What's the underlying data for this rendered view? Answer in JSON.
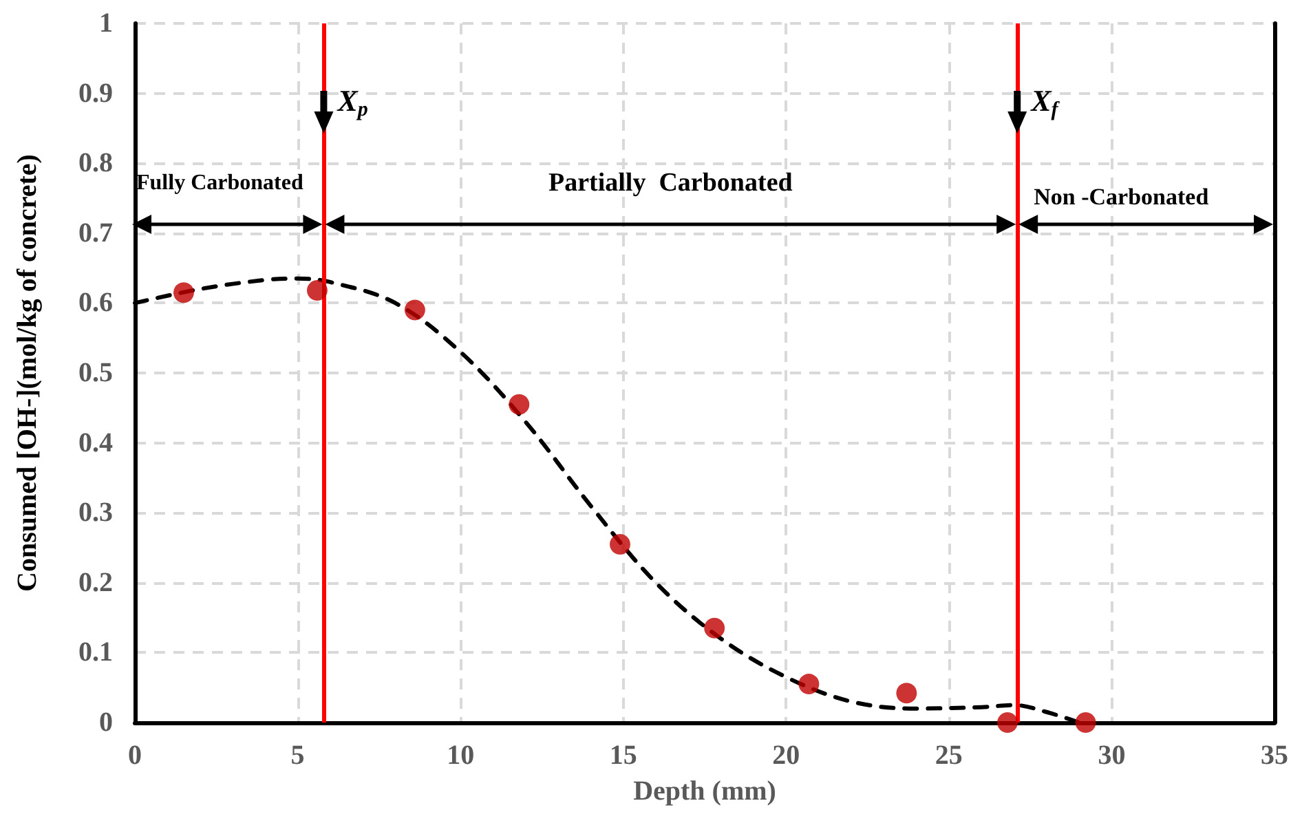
{
  "chart_data": {
    "type": "scatter",
    "xlabel": "Depth (mm)",
    "ylabel": "Consumed [OH-](mol/kg of concrete)",
    "xlim": [
      0,
      35
    ],
    "xticks": [
      0,
      5,
      10,
      15,
      20,
      25,
      30,
      35
    ],
    "ylim": [
      0,
      1
    ],
    "yticks": [
      0,
      0.1,
      0.2,
      0.3,
      0.4,
      0.5,
      0.6,
      0.7,
      0.8,
      0.9,
      1
    ],
    "grid": true,
    "series": [
      {
        "color": "#c00000",
        "marker": "circle",
        "x": [
          1.5,
          5.6,
          8.6,
          11.8,
          14.9,
          17.8,
          20.7,
          23.7,
          26.8,
          29.2
        ],
        "values": [
          0.615,
          0.618,
          0.59,
          0.455,
          0.255,
          0.135,
          0.055,
          0.042,
          0,
          0
        ]
      },
      {
        "type": "line",
        "color": "#000000",
        "marker": "none",
        "line_style": "dashed",
        "x": [
          0,
          2,
          4,
          5,
          6,
          8,
          10,
          12,
          14,
          16,
          18,
          20,
          22,
          24,
          26,
          27,
          28,
          29
        ],
        "values": [
          0.6,
          0.62,
          0.633,
          0.635,
          0.63,
          0.6,
          0.53,
          0.43,
          0.31,
          0.2,
          0.12,
          0.065,
          0.03,
          0.02,
          0.022,
          0.025,
          0.015,
          0
        ]
      }
    ],
    "ref_lines": [
      {
        "axis": "x",
        "value": 5.8,
        "label": "X$_{p}$",
        "color": "#ff0000"
      },
      {
        "axis": "x",
        "value": 27.1,
        "label": "X$_{f}$",
        "color": "#ff0000"
      }
    ],
    "annotations": [
      "Fully Carbonated",
      "Partially  Carbonated",
      "Non -Carbonated"
    ]
  }
}
